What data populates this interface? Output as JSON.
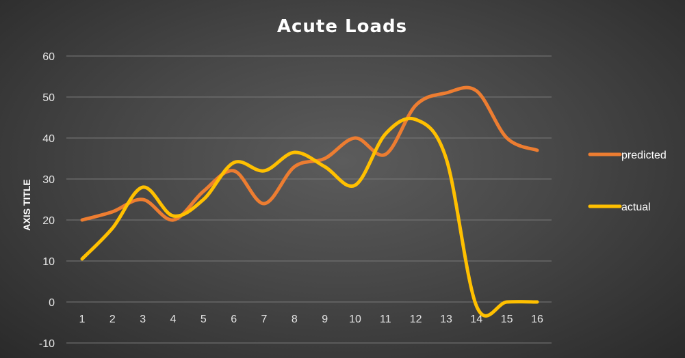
{
  "chart_data": {
    "type": "line",
    "title": "Acute Loads",
    "xlabel": "",
    "ylabel": "AXIS TITLE",
    "categories": [
      "1",
      "2",
      "3",
      "4",
      "5",
      "6",
      "7",
      "8",
      "9",
      "10",
      "11",
      "12",
      "13",
      "14",
      "15",
      "16"
    ],
    "ylim": [
      -10,
      60
    ],
    "yticks": [
      -10,
      0,
      10,
      20,
      30,
      40,
      50,
      60
    ],
    "grid": true,
    "smooth": true,
    "legend_position": "right",
    "series": [
      {
        "name": "predicted",
        "color": "#ed7d31",
        "values": [
          20,
          22,
          25,
          20,
          27,
          32,
          24,
          33,
          35,
          40,
          36,
          48,
          51,
          51.5,
          40,
          37
        ]
      },
      {
        "name": "actual",
        "color": "#ffc000",
        "values": [
          10.5,
          18,
          28,
          21,
          25,
          34,
          32,
          36.5,
          33,
          28.5,
          41,
          44.5,
          35,
          -1,
          0,
          0
        ]
      }
    ]
  }
}
